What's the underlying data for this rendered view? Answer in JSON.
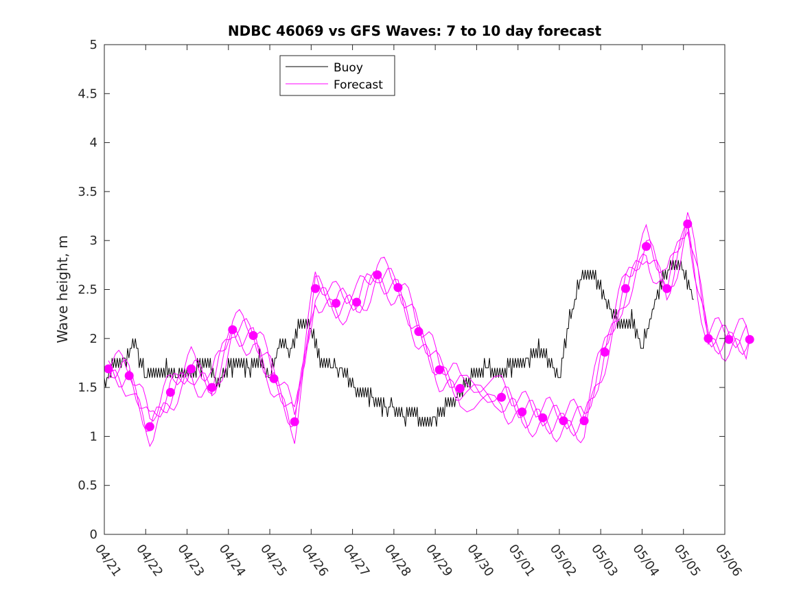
{
  "chart_data": {
    "type": "line",
    "title": "NDBC 46069 vs GFS Waves: 7 to 10 day forecast",
    "xlabel": "",
    "ylabel": "Wave height, m",
    "xlim": [
      "04/21",
      "05/06"
    ],
    "ylim": [
      0,
      5
    ],
    "x_ticks": [
      "04/21",
      "04/22",
      "04/23",
      "04/24",
      "04/25",
      "04/26",
      "04/27",
      "04/28",
      "04/29",
      "04/30",
      "05/01",
      "05/02",
      "05/03",
      "05/04",
      "05/05",
      "05/06"
    ],
    "y_ticks": [
      "0",
      "0.5",
      "1",
      "1.5",
      "2",
      "2.5",
      "3",
      "3.5",
      "4",
      "4.5",
      "5"
    ],
    "grid": false,
    "legend": {
      "placement": "top-center",
      "entries": [
        "Buoy",
        "Forecast"
      ]
    },
    "colors": {
      "buoy": "#000000",
      "forecast": "#ff00ff"
    },
    "series": [
      {
        "name": "Buoy",
        "color": "#000000",
        "day": [
          0,
          0.25,
          0.5,
          0.75,
          1.0,
          1.25,
          1.5,
          1.75,
          2.0,
          2.25,
          2.5,
          2.75,
          3.0,
          3.25,
          3.5,
          3.75,
          4.0,
          4.25,
          4.5,
          4.75,
          5.0,
          5.25,
          5.5,
          5.75,
          6.0,
          6.25,
          6.5,
          6.75,
          7.0,
          7.25,
          7.5,
          7.75,
          8.0,
          8.25,
          8.5,
          8.75,
          9.0,
          9.25,
          9.5,
          9.75,
          10.0,
          10.25,
          10.5,
          10.75,
          11.0,
          11.25,
          11.5,
          11.75,
          12.0,
          12.25,
          12.5,
          12.75,
          13.0,
          13.25,
          13.5,
          13.75,
          14.0,
          14.25
        ],
        "height": [
          1.55,
          1.75,
          1.8,
          1.95,
          1.6,
          1.65,
          1.7,
          1.6,
          1.65,
          1.7,
          1.75,
          1.55,
          1.7,
          1.75,
          1.7,
          1.8,
          1.6,
          2.0,
          1.85,
          2.2,
          2.1,
          1.75,
          1.7,
          1.7,
          1.5,
          1.45,
          1.4,
          1.3,
          1.3,
          1.2,
          1.25,
          1.15,
          1.2,
          1.3,
          1.4,
          1.55,
          1.65,
          1.7,
          1.65,
          1.7,
          1.75,
          1.8,
          1.9,
          1.75,
          1.6,
          2.2,
          2.6,
          2.7,
          2.5,
          2.3,
          2.15,
          2.2,
          1.9,
          2.3,
          2.6,
          2.8,
          2.7,
          2.4
        ]
      },
      {
        "name": "Forecast",
        "color": "#ff00ff",
        "markers_day": [
          0.1,
          0.6,
          1.1,
          1.6,
          2.1,
          2.6,
          3.1,
          3.6,
          4.1,
          4.6,
          5.1,
          5.6,
          6.1,
          6.6,
          7.1,
          7.6,
          8.1,
          8.6,
          9.6,
          10.1,
          10.6,
          11.1,
          11.6,
          12.1,
          12.6,
          13.1,
          13.6,
          14.1,
          14.6,
          15.1,
          15.6
        ],
        "markers_height": [
          1.69,
          1.62,
          1.1,
          1.45,
          1.69,
          1.5,
          2.09,
          2.03,
          1.59,
          1.15,
          2.51,
          2.36,
          2.37,
          2.65,
          2.52,
          2.07,
          1.68,
          1.49,
          1.4,
          1.25,
          1.19,
          1.16,
          1.16,
          1.86,
          2.51,
          2.94,
          2.51,
          3.17,
          2.0,
          1.99,
          1.99
        ]
      }
    ]
  }
}
